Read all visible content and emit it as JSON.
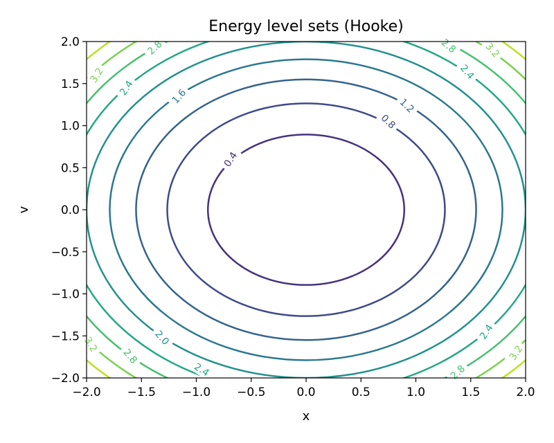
{
  "chart_data": {
    "type": "contour",
    "title": "Energy level sets (Hooke)",
    "xlabel": "x",
    "ylabel": "v",
    "xlim": [
      -2.0,
      2.0
    ],
    "ylim": [
      -2.0,
      2.0
    ],
    "grid": false,
    "x_ticks": [
      "−2.0",
      "−1.5",
      "−1.0",
      "−0.5",
      "0.0",
      "0.5",
      "1.0",
      "1.5",
      "2.0"
    ],
    "y_ticks": [
      "−2.0",
      "−1.5",
      "−1.0",
      "−0.5",
      "0.0",
      "0.5",
      "1.0",
      "1.5",
      "2.0"
    ],
    "levels": [
      {
        "value": 0.4,
        "label": "0.4",
        "color": "#46327e"
      },
      {
        "value": 0.8,
        "label": "0.8",
        "color": "#3e4a89"
      },
      {
        "value": 1.2,
        "label": "1.2",
        "color": "#33638d"
      },
      {
        "value": 1.6,
        "label": "1.6",
        "color": "#2a788e"
      },
      {
        "value": 2.0,
        "label": "2.0",
        "color": "#21918c"
      },
      {
        "value": 2.4,
        "label": "2.4",
        "color": "#22a884"
      },
      {
        "value": 2.8,
        "label": "2.8",
        "color": "#44bf70"
      },
      {
        "value": 3.2,
        "label": "3.2",
        "color": "#7ad151"
      },
      {
        "value": 3.6,
        "label": "",
        "color": "#bddf26"
      }
    ],
    "contour_labels": [
      {
        "text": "0.4",
        "x": -0.69,
        "v": 0.6,
        "color": "#46327e"
      },
      {
        "text": "0.8",
        "x": 0.75,
        "v": 1.05,
        "color": "#3e4a89"
      },
      {
        "text": "1.2",
        "x": 0.92,
        "v": 1.24,
        "color": "#33638d"
      },
      {
        "text": "1.6",
        "x": -1.16,
        "v": 1.35,
        "color": "#2a788e"
      },
      {
        "text": "2.0",
        "x": -1.31,
        "v": -1.52,
        "color": "#21918c"
      },
      {
        "text": "2.4",
        "x": -1.64,
        "v": 1.45,
        "color": "#22a884"
      },
      {
        "text": "2.4",
        "x": 1.47,
        "v": 1.64,
        "color": "#22a884"
      },
      {
        "text": "2.4",
        "x": 1.64,
        "v": -1.45,
        "color": "#22a884"
      },
      {
        "text": "2.4",
        "x": -0.95,
        "v": -1.9,
        "color": "#22a884"
      },
      {
        "text": "2.8",
        "x": -1.38,
        "v": 1.93,
        "color": "#44bf70"
      },
      {
        "text": "2.8",
        "x": 1.3,
        "v": 1.95,
        "color": "#44bf70"
      },
      {
        "text": "2.8",
        "x": -1.6,
        "v": -1.74,
        "color": "#44bf70"
      },
      {
        "text": "2.8",
        "x": 1.38,
        "v": -1.93,
        "color": "#44bf70"
      },
      {
        "text": "3.2",
        "x": -1.91,
        "v": 1.6,
        "color": "#7ad151"
      },
      {
        "text": "3.2",
        "x": 1.7,
        "v": 1.9,
        "color": "#7ad151"
      },
      {
        "text": "3.2",
        "x": -1.96,
        "v": -1.6,
        "color": "#7ad151"
      },
      {
        "text": "3.2",
        "x": 1.91,
        "v": -1.7,
        "color": "#7ad151"
      }
    ]
  }
}
